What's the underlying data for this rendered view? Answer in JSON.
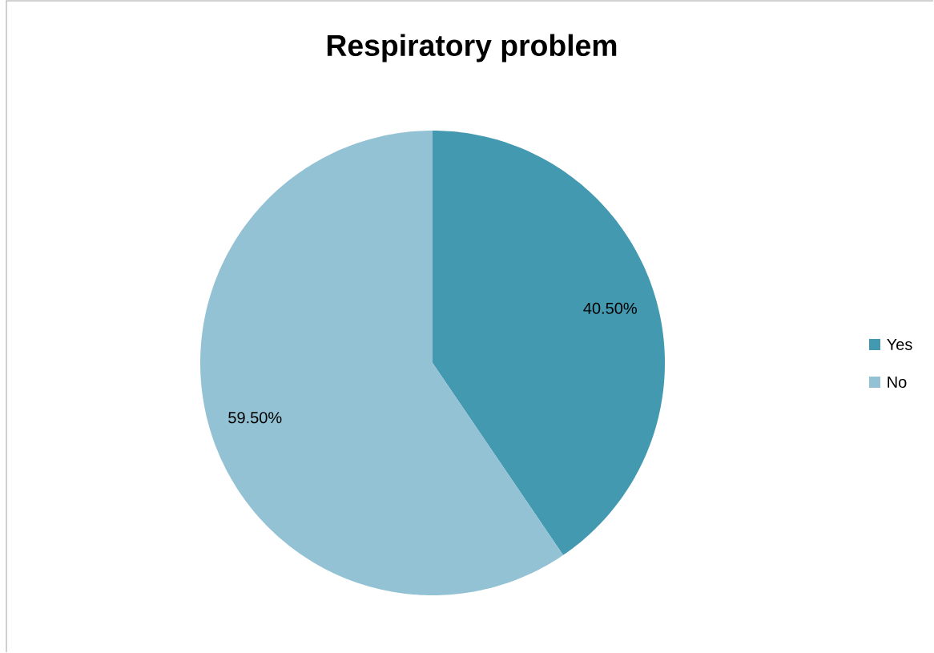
{
  "chart_data": {
    "type": "pie",
    "title": "Respiratory problem",
    "categories": [
      "Yes",
      "No"
    ],
    "values": [
      40.5,
      59.5
    ],
    "value_labels": [
      "40.50%",
      "59.50%"
    ],
    "colors": [
      "#4399b0",
      "#93c2d4"
    ],
    "legend": "right"
  }
}
